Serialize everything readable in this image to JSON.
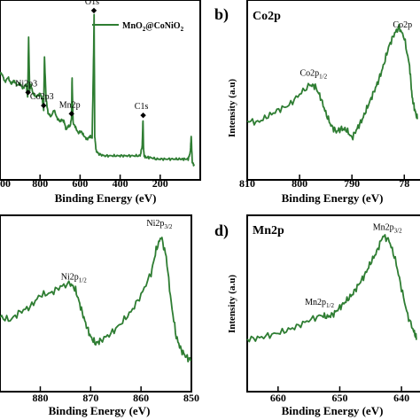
{
  "chart_data": [
    {
      "type": "line",
      "panel": "a",
      "title": "",
      "xlabel": "Binding Energy (eV)",
      "ylabel": "",
      "xlim": [
        1000,
        0
      ],
      "xticks": [
        "1000",
        "800",
        "600",
        "400",
        "200"
      ],
      "legend": {
        "entry": "MnO2@CoNiO2",
        "placement": "top-right"
      },
      "series": [
        {
          "name": "MnO2@CoNiO2",
          "x": [
            1010,
            990,
            975,
            960,
            945,
            930,
            915,
            900,
            885,
            870,
            862,
            857,
            852,
            845,
            835,
            820,
            800,
            790,
            782,
            778,
            770,
            760,
            745,
            730,
            715,
            700,
            690,
            680,
            670,
            660,
            650,
            643,
            640,
            635,
            625,
            610,
            595,
            580,
            565,
            550,
            540,
            533,
            530,
            527,
            520,
            505,
            480,
            450,
            420,
            390,
            360,
            330,
            300,
            290,
            286,
            283,
            280,
            270,
            250,
            220,
            190,
            160,
            130,
            100,
            80,
            60,
            50,
            45,
            40,
            30
          ],
          "y": [
            63,
            62,
            57,
            60,
            56,
            58,
            55,
            56,
            53,
            56,
            48,
            84,
            52,
            55,
            50,
            48,
            50,
            47,
            40,
            72,
            47,
            38,
            36,
            40,
            35,
            33,
            34,
            33,
            28,
            30,
            30,
            35,
            60,
            32,
            30,
            26,
            27,
            24,
            22,
            24,
            23,
            70,
            98,
            24,
            15,
            13,
            12,
            12,
            12,
            12,
            12,
            12,
            12,
            18,
            34,
            16,
            12,
            11,
            11,
            10,
            10,
            10,
            10,
            10,
            10,
            10,
            14,
            24,
            8,
            6
          ]
        }
      ],
      "annotations": [
        {
          "text": "Ni2p3",
          "x": 860
        },
        {
          "text": "Co2p3",
          "x": 782
        },
        {
          "text": "Mn2p",
          "x": 643
        },
        {
          "text": "O1s",
          "x": 531
        },
        {
          "text": "C1s",
          "x": 285
        }
      ]
    },
    {
      "type": "line",
      "panel": "b",
      "title": "Co2p",
      "xlabel": "Binding Energy (eV)",
      "ylabel": "Intensity (a.u)",
      "xlim": [
        810,
        777
      ],
      "xticks": [
        "810",
        "800",
        "790",
        "78"
      ],
      "series": [
        {
          "name": "Co2p",
          "x": [
            810,
            808,
            806,
            804,
            802,
            800,
            798,
            797,
            796,
            795,
            794,
            793,
            792,
            791,
            790,
            789,
            788,
            787,
            786,
            785,
            784,
            783,
            782,
            781,
            780,
            779,
            778.5,
            778,
            777.5
          ],
          "y": [
            35,
            34,
            38,
            42,
            45,
            52,
            58,
            57,
            50,
            40,
            32,
            28,
            30,
            29,
            24,
            30,
            36,
            44,
            52,
            60,
            70,
            82,
            90,
            95,
            88,
            70,
            50,
            42,
            36
          ]
        }
      ],
      "annotations": [
        {
          "text": "Co2p1/2",
          "x": 797
        },
        {
          "text": "Co2p",
          "x": 780
        }
      ]
    },
    {
      "type": "line",
      "panel": "c",
      "title": "",
      "xlabel": "Binding Energy (eV)",
      "ylabel": "",
      "xlim": [
        888,
        850
      ],
      "xticks": [
        "880",
        "870",
        "860",
        "850"
      ],
      "series": [
        {
          "name": "Ni2p",
          "x": [
            888,
            886,
            884,
            882,
            880,
            878,
            876,
            874,
            873,
            872,
            871,
            870,
            869,
            868,
            866,
            864,
            862,
            860,
            858,
            857,
            856,
            855,
            854,
            853,
            852,
            851,
            850
          ],
          "y": [
            42,
            40,
            45,
            48,
            55,
            56,
            60,
            62,
            58,
            48,
            38,
            30,
            26,
            28,
            32,
            38,
            45,
            55,
            68,
            82,
            90,
            78,
            50,
            30,
            22,
            18,
            16
          ]
        }
      ],
      "annotations": [
        {
          "text": "Ni2p1/2",
          "x": 873
        },
        {
          "text": "Ni2p3/2",
          "x": 856
        }
      ]
    },
    {
      "type": "line",
      "panel": "d",
      "title": "Mn2p",
      "xlabel": "Binding Energy (eV)",
      "ylabel": "Intensity (a.u)",
      "xlim": [
        665,
        637
      ],
      "xticks": [
        "660",
        "650",
        "640"
      ],
      "series": [
        {
          "name": "Mn2p",
          "x": [
            665,
            663,
            661,
            659,
            657,
            655,
            653,
            652,
            651,
            650,
            649,
            648,
            647,
            646,
            645,
            644,
            643,
            642,
            641,
            640,
            639,
            638,
            637.5
          ],
          "y": [
            30,
            31,
            33,
            35,
            38,
            42,
            45,
            44,
            46,
            50,
            54,
            58,
            64,
            70,
            78,
            85,
            95,
            92,
            80,
            62,
            45,
            35,
            30
          ]
        }
      ],
      "annotations": [
        {
          "text": "Mn2p1/2",
          "x": 653
        },
        {
          "text": "Mn2p3/2",
          "x": 642
        }
      ]
    }
  ],
  "panel_tags": {
    "b": "b)",
    "d": "d)"
  },
  "colors": {
    "line": "#2e7d32",
    "axis": "#000000",
    "marker": "#000000"
  }
}
